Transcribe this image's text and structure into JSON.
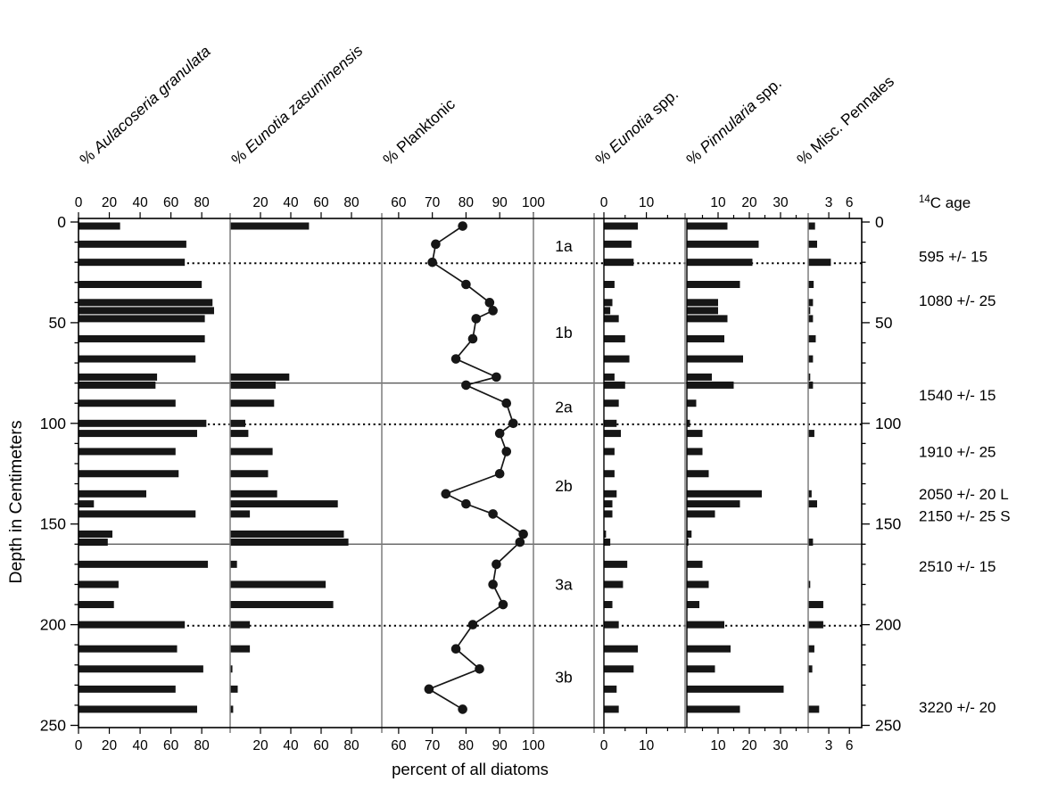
{
  "figure": {
    "xlabel": "percent of all diatoms",
    "ylabel": "Depth in Centimeters",
    "age_column": {
      "header_sup": "14",
      "header_text": "C age",
      "entries": [
        {
          "label": "595 +/- 15",
          "depth": 17
        },
        {
          "label": "1080 +/- 25",
          "depth": 39
        },
        {
          "label": "1540 +/- 15",
          "depth": 86
        },
        {
          "label": "1910 +/- 25",
          "depth": 114
        },
        {
          "label": "2050 +/- 20 L",
          "depth": 135
        },
        {
          "label": "2150 +/- 25 S",
          "depth": 146
        },
        {
          "label": "2510 +/- 15",
          "depth": 171
        },
        {
          "label": "3220 +/- 20",
          "depth": 241
        }
      ]
    }
  },
  "colors": {
    "background": "#ffffff",
    "bar": "#161616",
    "line": "#161616",
    "frame": "#000000",
    "divider": "#7d7d7d",
    "zone_line": "#4f4f4f",
    "text": "#000000"
  },
  "chart_data": {
    "type": "bar",
    "subtype": "stratigraphic-multi-panel-diatom-diagram",
    "xlabel": "percent of all diatoms",
    "depth_axis": {
      "label": "Depth in Centimeters",
      "range": [
        0,
        250
      ],
      "major_ticks": [
        0,
        50,
        100,
        150,
        200,
        250
      ],
      "minor_tick_step": 10,
      "labeled_both_sides": true
    },
    "depth_cm": [
      2,
      11,
      20,
      31,
      40,
      44,
      48,
      58,
      68,
      77,
      81,
      90,
      100,
      105,
      114,
      125,
      135,
      140,
      145,
      155,
      159,
      170,
      180,
      190,
      200,
      212,
      222,
      232,
      242
    ],
    "panels": [
      {
        "id": "aulacoseria-granulata",
        "title": {
          "prefix": "% ",
          "italic": "Aulacoseria granulata",
          "suffix": ""
        },
        "plot": "bar",
        "xticks": [
          0,
          20,
          40,
          60,
          80
        ],
        "minor_xticks": [],
        "xlim": [
          0,
          98
        ],
        "values": [
          27,
          70,
          69,
          80,
          87,
          88,
          82,
          82,
          76,
          51,
          50,
          63,
          83,
          77,
          63,
          65,
          44,
          10,
          76,
          22,
          19,
          84,
          26,
          23,
          69,
          64,
          81,
          63,
          77
        ]
      },
      {
        "id": "eunotia-zasuminensis",
        "title": {
          "prefix": "% ",
          "italic": "Eunotia zasuminensis",
          "suffix": ""
        },
        "plot": "bar",
        "xticks": [
          20,
          40,
          60,
          80
        ],
        "minor_xticks": [],
        "xlim": [
          0,
          99
        ],
        "values": [
          52,
          0,
          0,
          0,
          0,
          0,
          0,
          0,
          0,
          39,
          30,
          29,
          10,
          12,
          28,
          25,
          31,
          71,
          13,
          75,
          78,
          4.5,
          63,
          68,
          13,
          13,
          1.5,
          5,
          2
        ]
      },
      {
        "id": "planktonic",
        "title": {
          "prefix": "% ",
          "italic": "",
          "suffix": "Planktonic"
        },
        "plot": "line",
        "xticks": [
          60,
          70,
          80,
          90,
          100
        ],
        "minor_xticks": [],
        "xlim": [
          55,
          100
        ],
        "values": [
          79,
          71,
          70,
          80,
          87,
          88,
          83,
          82,
          77,
          89,
          80,
          92,
          94,
          90,
          92,
          90,
          74,
          80,
          88,
          97,
          96,
          89,
          88,
          91,
          82,
          77,
          84,
          69,
          79
        ]
      },
      {
        "id": "zones",
        "plot": "zones",
        "labels": [
          {
            "text": "1a",
            "depth": 12
          },
          {
            "text": "1b",
            "depth": 55
          },
          {
            "text": "2a",
            "depth": 92
          },
          {
            "text": "2b",
            "depth": 131
          },
          {
            "text": "3a",
            "depth": 180
          },
          {
            "text": "3b",
            "depth": 226
          }
        ]
      },
      {
        "id": "eunotia-spp",
        "title": {
          "prefix": "% ",
          "italic": "Eunotia",
          "suffix": " spp."
        },
        "plot": "bar",
        "xticks": [
          0,
          10
        ],
        "minor_xticks": [
          5,
          15
        ],
        "xlim": [
          0,
          19
        ],
        "values": [
          8,
          6.5,
          7,
          2.5,
          2,
          1.5,
          3.5,
          5,
          6,
          2.5,
          5,
          3.5,
          3,
          4,
          2.5,
          2.5,
          3,
          2,
          2,
          0.5,
          1.5,
          5.5,
          4.5,
          2,
          3.5,
          8,
          7,
          3,
          3.5
        ]
      },
      {
        "id": "pinnularia-spp",
        "title": {
          "prefix": "% ",
          "italic": "Pinnularia",
          "suffix": " spp."
        },
        "plot": "bar",
        "xticks": [
          10,
          20,
          30
        ],
        "minor_xticks": [
          5,
          15,
          25,
          35
        ],
        "xlim": [
          0,
          39
        ],
        "values": [
          13,
          23,
          21,
          17,
          10,
          10,
          13,
          12,
          18,
          8,
          15,
          3,
          1,
          5,
          5,
          7,
          24,
          17,
          9,
          1.5,
          0.5,
          5,
          7,
          4,
          12,
          14,
          9,
          31,
          17
        ]
      },
      {
        "id": "misc-pennales",
        "title": {
          "prefix": "% ",
          "italic": "",
          "suffix": "Misc. Pennales"
        },
        "plot": "bar",
        "xticks": [
          3,
          6
        ],
        "minor_xticks": [],
        "xlim": [
          0,
          7.8
        ],
        "values": [
          1,
          1.3,
          3.3,
          0.8,
          0.7,
          0.3,
          0.7,
          1.1,
          0.7,
          0.3,
          0.7,
          0,
          0,
          0.9,
          0,
          0,
          0.5,
          1.3,
          0,
          0,
          0.7,
          0,
          0.3,
          2.2,
          2.2,
          0.9,
          0.6,
          0,
          1.6
        ]
      }
    ],
    "zone_boundaries": [
      {
        "depth": 20.5,
        "style": "dotted"
      },
      {
        "depth": 80,
        "style": "solid"
      },
      {
        "depth": 100.5,
        "style": "dotted"
      },
      {
        "depth": 160,
        "style": "solid"
      },
      {
        "depth": 200.5,
        "style": "dotted"
      }
    ]
  }
}
